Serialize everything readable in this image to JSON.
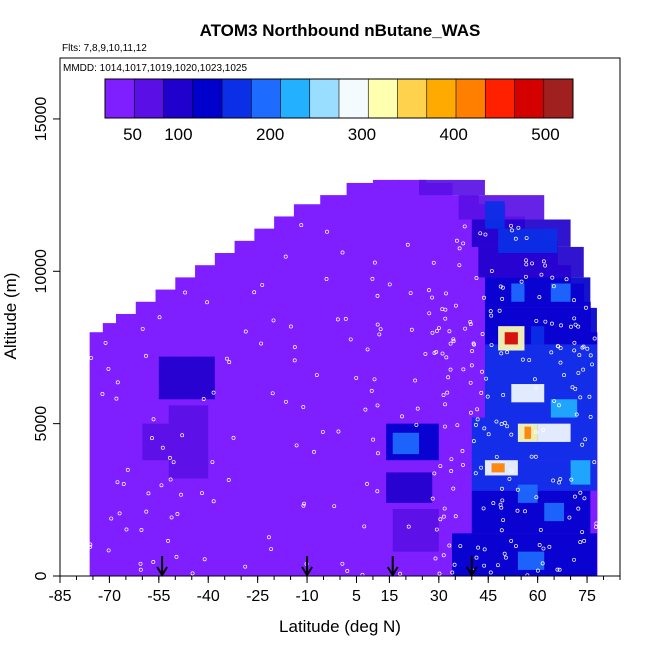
{
  "chart_data": {
    "type": "heatmap",
    "title": "ATOM3 Northbound nButane_WAS",
    "flights_note": "Flts: 7,8,9,10,11,12",
    "dates_note": "MMDD: 1014,1017,1019,1020,1023,1025",
    "xlabel": "Latitude (deg N)",
    "ylabel": "Altitude (m)",
    "xlim": [
      -85,
      85
    ],
    "ylim": [
      0,
      17000
    ],
    "x_ticks": [
      "-85",
      "-70",
      "-55",
      "-40",
      "-25",
      "-10",
      "5",
      "15",
      "30",
      "45",
      "60",
      "75"
    ],
    "x_tick_values": [
      -85,
      -70,
      -55,
      -40,
      -25,
      -10,
      5,
      15,
      30,
      45,
      60,
      75
    ],
    "y_ticks": [
      "0",
      "5000",
      "10000",
      "15000"
    ],
    "y_tick_values": [
      0,
      5000,
      10000,
      15000
    ],
    "colorbar": {
      "range": [
        20,
        530
      ],
      "tick_labels": [
        "50",
        "100",
        "200",
        "300",
        "400",
        "500"
      ],
      "tick_values": [
        50,
        100,
        200,
        300,
        400,
        500
      ],
      "colors": [
        "#7f1fff",
        "#5a0fe6",
        "#2000cc",
        "#0000cc",
        "#0a2fe6",
        "#1e6bff",
        "#22b0ff",
        "#99ddff",
        "#f4fbff",
        "#ffffb0",
        "#ffd24d",
        "#ffaa00",
        "#ff7f00",
        "#ff2000",
        "#d40000",
        "#a02020"
      ]
    },
    "arrows_latitude": [
      -54,
      -10,
      16,
      40
    ],
    "background_value": 25,
    "cells": [
      {
        "lat": [
          -55,
          -38
        ],
        "alt": [
          5800,
          7200
        ],
        "value": 90
      },
      {
        "lat": [
          -52,
          -40
        ],
        "alt": [
          3200,
          5600
        ],
        "value": 70
      },
      {
        "lat": [
          -60,
          -52
        ],
        "alt": [
          3800,
          5000
        ],
        "value": 60
      },
      {
        "lat": [
          -35,
          -20
        ],
        "alt": [
          2500,
          3500
        ],
        "value": 45
      },
      {
        "lat": [
          -10,
          5
        ],
        "alt": [
          6500,
          8500
        ],
        "value": 40
      },
      {
        "lat": [
          14,
          30
        ],
        "alt": [
          3800,
          5000
        ],
        "value": 140
      },
      {
        "lat": [
          16,
          24
        ],
        "alt": [
          4000,
          4700
        ],
        "value": 180
      },
      {
        "lat": [
          14,
          28
        ],
        "alt": [
          2400,
          3400
        ],
        "value": 110
      },
      {
        "lat": [
          16,
          30
        ],
        "alt": [
          800,
          2200
        ],
        "value": 80
      },
      {
        "lat": [
          34,
          78
        ],
        "alt": [
          0,
          1400
        ],
        "value": 120
      },
      {
        "lat": [
          40,
          76
        ],
        "alt": [
          1400,
          2800
        ],
        "value": 130
      },
      {
        "lat": [
          40,
          78
        ],
        "alt": [
          2800,
          3800
        ],
        "value": 150
      },
      {
        "lat": [
          40,
          78
        ],
        "alt": [
          3800,
          5200
        ],
        "value": 160
      },
      {
        "lat": [
          44,
          78
        ],
        "alt": [
          5200,
          6400
        ],
        "value": 150
      },
      {
        "lat": [
          44,
          78
        ],
        "alt": [
          6400,
          7600
        ],
        "value": 160
      },
      {
        "lat": [
          44,
          78
        ],
        "alt": [
          7600,
          8800
        ],
        "value": 140
      },
      {
        "lat": [
          44,
          76
        ],
        "alt": [
          8800,
          9800
        ],
        "value": 120
      },
      {
        "lat": [
          42,
          74
        ],
        "alt": [
          9800,
          10800
        ],
        "value": 100
      },
      {
        "lat": [
          40,
          70
        ],
        "alt": [
          10800,
          11700
        ],
        "value": 90
      },
      {
        "lat": [
          36,
          62
        ],
        "alt": [
          11700,
          12500
        ],
        "value": 80
      },
      {
        "lat": [
          24,
          34
        ],
        "alt": [
          12500,
          13000
        ],
        "value": 60
      },
      {
        "lat": [
          34,
          44
        ],
        "alt": [
          12500,
          13000
        ],
        "value": 70
      },
      {
        "lat": [
          48,
          66
        ],
        "alt": [
          10600,
          11400
        ],
        "value": 170
      },
      {
        "lat": [
          44,
          50
        ],
        "alt": [
          11400,
          12300
        ],
        "value": 150
      },
      {
        "lat": [
          52,
          56
        ],
        "alt": [
          9000,
          9600
        ],
        "value": 200
      },
      {
        "lat": [
          64,
          70
        ],
        "alt": [
          9000,
          9600
        ],
        "value": 180
      },
      {
        "lat": [
          48,
          56
        ],
        "alt": [
          7400,
          8200
        ],
        "value": 320
      },
      {
        "lat": [
          50,
          54
        ],
        "alt": [
          7600,
          8000
        ],
        "value": 480
      },
      {
        "lat": [
          58,
          62
        ],
        "alt": [
          7600,
          8200
        ],
        "value": 170
      },
      {
        "lat": [
          54,
          60
        ],
        "alt": [
          4400,
          5000
        ],
        "value": 330
      },
      {
        "lat": [
          56,
          58
        ],
        "alt": [
          4500,
          4900
        ],
        "value": 420
      },
      {
        "lat": [
          60,
          70
        ],
        "alt": [
          4400,
          5000
        ],
        "value": 290
      },
      {
        "lat": [
          44,
          54
        ],
        "alt": [
          3300,
          3800
        ],
        "value": 300
      },
      {
        "lat": [
          46,
          50
        ],
        "alt": [
          3400,
          3700
        ],
        "value": 420
      },
      {
        "lat": [
          52,
          62
        ],
        "alt": [
          5700,
          6300
        ],
        "value": 280
      },
      {
        "lat": [
          64,
          72
        ],
        "alt": [
          5200,
          5800
        ],
        "value": 220
      },
      {
        "lat": [
          62,
          68
        ],
        "alt": [
          1800,
          2400
        ],
        "value": 200
      },
      {
        "lat": [
          54,
          60
        ],
        "alt": [
          2400,
          3000
        ],
        "value": 200
      },
      {
        "lat": [
          70,
          76
        ],
        "alt": [
          3000,
          3800
        ],
        "value": 220
      },
      {
        "lat": [
          54,
          62
        ],
        "alt": [
          200,
          800
        ],
        "value": 180
      }
    ],
    "profile_top": [
      {
        "lat": [
          -76,
          -72
        ],
        "alt": 8000
      },
      {
        "lat": [
          -72,
          -68
        ],
        "alt": 8300
      },
      {
        "lat": [
          -68,
          -62
        ],
        "alt": 8600
      },
      {
        "lat": [
          -62,
          -56
        ],
        "alt": 9000
      },
      {
        "lat": [
          -56,
          -50
        ],
        "alt": 9400
      },
      {
        "lat": [
          -50,
          -44
        ],
        "alt": 9800
      },
      {
        "lat": [
          -44,
          -38
        ],
        "alt": 10200
      },
      {
        "lat": [
          -38,
          -32
        ],
        "alt": 10600
      },
      {
        "lat": [
          -32,
          -26
        ],
        "alt": 11000
      },
      {
        "lat": [
          -26,
          -20
        ],
        "alt": 11400
      },
      {
        "lat": [
          -20,
          -14
        ],
        "alt": 11800
      },
      {
        "lat": [
          -14,
          -6
        ],
        "alt": 12200
      },
      {
        "lat": [
          -6,
          2
        ],
        "alt": 12500
      },
      {
        "lat": [
          2,
          10
        ],
        "alt": 12900
      },
      {
        "lat": [
          10,
          18
        ],
        "alt": 13000
      },
      {
        "lat": [
          18,
          26
        ],
        "alt": 13000
      },
      {
        "lat": [
          26,
          34
        ],
        "alt": 12900
      },
      {
        "lat": [
          34,
          42
        ],
        "alt": 12500
      },
      {
        "lat": [
          42,
          50
        ],
        "alt": 12200
      },
      {
        "lat": [
          50,
          56
        ],
        "alt": 11800
      },
      {
        "lat": [
          56,
          62
        ],
        "alt": 11400
      },
      {
        "lat": [
          62,
          66
        ],
        "alt": 11000
      },
      {
        "lat": [
          66,
          70
        ],
        "alt": 10200
      },
      {
        "lat": [
          70,
          74
        ],
        "alt": 9600
      },
      {
        "lat": [
          74,
          76
        ],
        "alt": 9000
      },
      {
        "lat": [
          76,
          78
        ],
        "alt": 8000
      }
    ]
  }
}
